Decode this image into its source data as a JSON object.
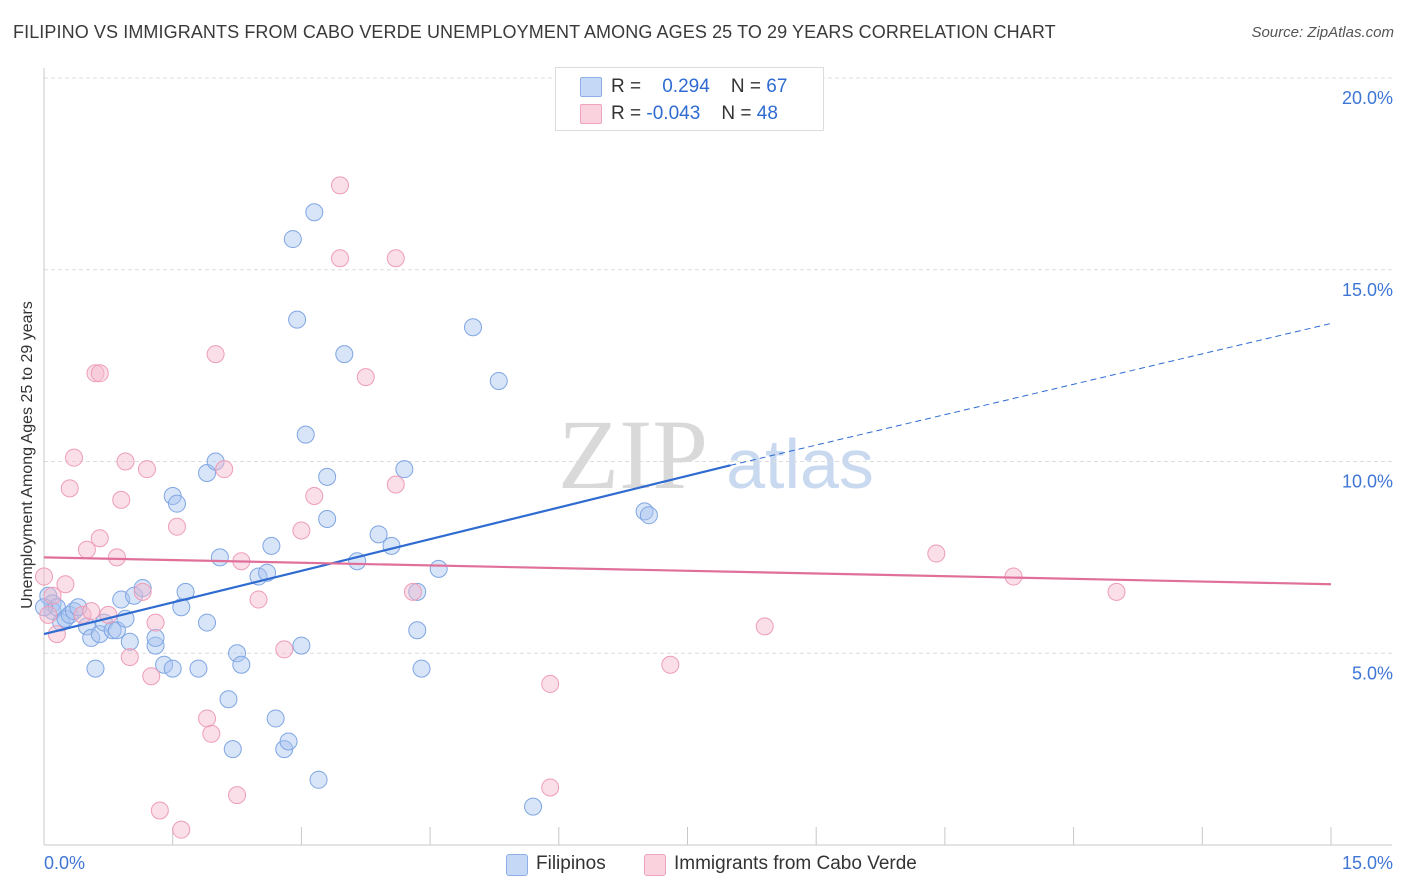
{
  "title": "FILIPINO VS IMMIGRANTS FROM CABO VERDE UNEMPLOYMENT AMONG AGES 25 TO 29 YEARS CORRELATION CHART",
  "source": "Source: ZipAtlas.com",
  "watermark": {
    "zip": "ZIP",
    "atlas": "atlas"
  },
  "legend": {
    "r_label": "R =",
    "n_label": "N =",
    "rows": [
      {
        "r": "0.294",
        "n": "67",
        "color": "#a9c4ef"
      },
      {
        "r": "-0.043",
        "n": "48",
        "color": "#f5b8cb"
      }
    ]
  },
  "bottom_legend": [
    {
      "label": "Filipinos",
      "color": "#a9c4ef"
    },
    {
      "label": "Immigrants from Cabo Verde",
      "color": "#f5b8cb"
    }
  ],
  "colors": {
    "blue": "#2f6bd0",
    "blue_fill": "#a9c4ef",
    "pink": "#e0709a",
    "pink_fill": "#f5b8cb",
    "tick_label": "#3f76d6"
  },
  "chart_data": {
    "type": "scatter",
    "title": "FILIPINO VS IMMIGRANTS FROM CABO VERDE UNEMPLOYMENT AMONG AGES 25 TO 29 YEARS CORRELATION CHART",
    "xlabel": "",
    "ylabel": "Unemployment Among Ages 25 to 29 years",
    "xlim": [
      0,
      15
    ],
    "ylim": [
      0,
      20
    ],
    "x_tick_labels": [
      "0.0%",
      "15.0%"
    ],
    "y_tick_values": [
      5,
      10,
      15,
      20
    ],
    "y_tick_labels": [
      "5.0%",
      "10.0%",
      "15.0%",
      "20.0%"
    ],
    "grid": true,
    "legend_position": "top-center",
    "series": [
      {
        "name": "Filipinos",
        "r": 0.294,
        "n": 67,
        "trend": {
          "x0": 0,
          "y0": 5.5,
          "x1": 8.0,
          "y1": 9.9,
          "x_end": 15.0,
          "y_end": 13.6
        },
        "points": [
          [
            0.05,
            6.5
          ],
          [
            0.1,
            6.3
          ],
          [
            0.1,
            6.1
          ],
          [
            0.15,
            6.2
          ],
          [
            0.2,
            5.8
          ],
          [
            0.25,
            5.9
          ],
          [
            0.3,
            6.0
          ],
          [
            0.35,
            6.1
          ],
          [
            0.4,
            6.2
          ],
          [
            0.5,
            5.7
          ],
          [
            0.55,
            5.4
          ],
          [
            0.6,
            4.6
          ],
          [
            0.65,
            5.5
          ],
          [
            0.7,
            5.8
          ],
          [
            0.8,
            5.6
          ],
          [
            0.85,
            5.6
          ],
          [
            0.9,
            6.4
          ],
          [
            0.95,
            5.9
          ],
          [
            1.0,
            5.3
          ],
          [
            1.05,
            6.5
          ],
          [
            1.15,
            6.7
          ],
          [
            1.3,
            5.2
          ],
          [
            1.3,
            5.4
          ],
          [
            1.4,
            4.7
          ],
          [
            1.5,
            4.6
          ],
          [
            1.5,
            9.1
          ],
          [
            1.55,
            8.9
          ],
          [
            1.6,
            6.2
          ],
          [
            1.65,
            6.6
          ],
          [
            1.8,
            4.6
          ],
          [
            1.9,
            5.8
          ],
          [
            1.9,
            9.7
          ],
          [
            2.0,
            10.0
          ],
          [
            2.05,
            7.5
          ],
          [
            2.15,
            3.8
          ],
          [
            2.2,
            2.5
          ],
          [
            2.25,
            5.0
          ],
          [
            2.3,
            4.7
          ],
          [
            2.5,
            7.0
          ],
          [
            2.6,
            7.1
          ],
          [
            2.65,
            7.8
          ],
          [
            2.7,
            3.3
          ],
          [
            2.8,
            2.5
          ],
          [
            2.85,
            2.7
          ],
          [
            2.9,
            15.8
          ],
          [
            2.95,
            13.7
          ],
          [
            3.0,
            5.2
          ],
          [
            3.05,
            10.7
          ],
          [
            3.15,
            16.5
          ],
          [
            3.2,
            1.7
          ],
          [
            3.3,
            8.5
          ],
          [
            3.3,
            9.6
          ],
          [
            3.5,
            12.8
          ],
          [
            3.65,
            7.4
          ],
          [
            3.9,
            8.1
          ],
          [
            4.05,
            7.8
          ],
          [
            4.2,
            9.8
          ],
          [
            4.35,
            6.6
          ],
          [
            4.35,
            5.6
          ],
          [
            4.4,
            4.6
          ],
          [
            4.6,
            7.2
          ],
          [
            5.0,
            13.5
          ],
          [
            5.3,
            12.1
          ],
          [
            5.7,
            1.0
          ],
          [
            7.0,
            8.7
          ],
          [
            7.05,
            8.6
          ],
          [
            0.0,
            6.2
          ]
        ]
      },
      {
        "name": "Immigrants from Cabo Verde",
        "r": -0.043,
        "n": 48,
        "trend": {
          "x0": 0,
          "y0": 7.5,
          "x1": 15.0,
          "y1": 6.8
        },
        "points": [
          [
            0.0,
            7.0
          ],
          [
            0.1,
            6.5
          ],
          [
            0.15,
            5.5
          ],
          [
            0.25,
            6.8
          ],
          [
            0.3,
            9.3
          ],
          [
            0.35,
            10.1
          ],
          [
            0.45,
            6.0
          ],
          [
            0.5,
            7.7
          ],
          [
            0.6,
            12.3
          ],
          [
            0.65,
            12.3
          ],
          [
            0.65,
            8.0
          ],
          [
            0.75,
            6.0
          ],
          [
            0.85,
            7.5
          ],
          [
            0.9,
            9.0
          ],
          [
            0.95,
            10.0
          ],
          [
            1.0,
            4.9
          ],
          [
            1.15,
            6.6
          ],
          [
            1.2,
            9.8
          ],
          [
            1.25,
            4.4
          ],
          [
            1.3,
            5.8
          ],
          [
            1.35,
            0.9
          ],
          [
            1.55,
            8.3
          ],
          [
            1.6,
            0.4
          ],
          [
            1.9,
            3.3
          ],
          [
            1.95,
            2.9
          ],
          [
            2.0,
            12.8
          ],
          [
            2.1,
            9.8
          ],
          [
            2.25,
            1.3
          ],
          [
            2.3,
            7.4
          ],
          [
            2.5,
            6.4
          ],
          [
            2.8,
            5.1
          ],
          [
            3.0,
            8.2
          ],
          [
            3.15,
            9.1
          ],
          [
            3.45,
            17.2
          ],
          [
            3.45,
            15.3
          ],
          [
            3.75,
            12.2
          ],
          [
            4.1,
            15.3
          ],
          [
            4.1,
            9.4
          ],
          [
            4.3,
            6.6
          ],
          [
            5.9,
            4.2
          ],
          [
            5.9,
            1.5
          ],
          [
            7.3,
            4.7
          ],
          [
            8.4,
            5.7
          ],
          [
            10.4,
            7.6
          ],
          [
            11.3,
            7.0
          ],
          [
            12.5,
            6.6
          ],
          [
            0.05,
            6.0
          ],
          [
            0.55,
            6.1
          ]
        ]
      }
    ]
  }
}
